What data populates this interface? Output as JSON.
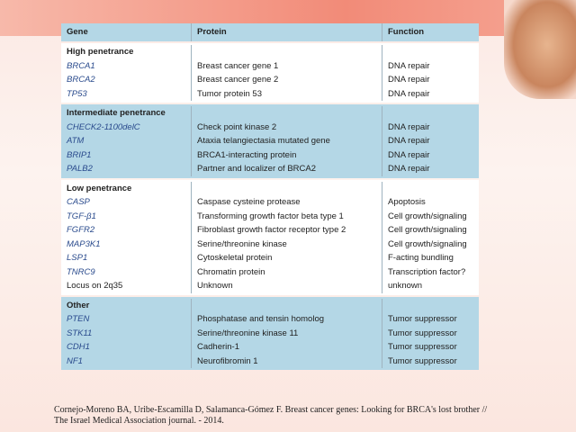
{
  "table": {
    "header": [
      "Gene",
      "Protein",
      "Function"
    ],
    "groups": [
      {
        "name": "High penetrance",
        "rows": [
          [
            "BRCA1",
            "Breast cancer gene 1",
            "DNA repair"
          ],
          [
            "BRCA2",
            "Breast cancer gene 2",
            "DNA repair"
          ],
          [
            "TP53",
            "Tumor protein 53",
            "DNA repair"
          ]
        ]
      },
      {
        "name": "Intermediate penetrance",
        "rows": [
          [
            "CHECK2-1100delC",
            "Check point kinase 2",
            "DNA repair"
          ],
          [
            "ATM",
            "Ataxia telangiectasia mutated gene",
            "DNA repair"
          ],
          [
            "BRIP1",
            "BRCA1-interacting protein",
            "DNA repair"
          ],
          [
            "PALB2",
            "Partner and localizer of BRCA2",
            "DNA repair"
          ]
        ]
      },
      {
        "name": "Low penetrance",
        "rows": [
          [
            "CASP",
            "Caspase cysteine protease",
            "Apoptosis"
          ],
          [
            "TGF-β1",
            "Transforming growth factor beta type 1",
            "Cell growth/signaling"
          ],
          [
            "FGFR2",
            "Fibroblast growth factor receptor type 2",
            "Cell growth/signaling"
          ],
          [
            "MAP3K1",
            "Serine/threonine kinase",
            "Cell growth/signaling"
          ],
          [
            "LSP1",
            "Cytoskeletal protein",
            "F-acting bundling"
          ],
          [
            "TNRC9",
            "Chromatin protein",
            "Transcription factor?"
          ],
          [
            "Locus on 2q35",
            "Unknown",
            "unknown"
          ]
        ]
      },
      {
        "name": "Other",
        "rows": [
          [
            "PTEN",
            "Phosphatase and tensin homolog",
            "Tumor suppressor"
          ],
          [
            "STK11",
            "Serine/threonine kinase 11",
            "Tumor suppressor"
          ],
          [
            "CDH1",
            "Cadherin-1",
            "Tumor suppressor"
          ],
          [
            "NF1",
            "Neurofibromin 1",
            "Tumor suppressor"
          ]
        ]
      }
    ]
  },
  "citation": [
    "Cornejo-Moreno BA, Uribe-Escamilla D, Salamanca-Gómez F. Breast cancer genes: Looking for BRCA's lost brother //",
    "The Israel Medical Association journal. - 2014."
  ]
}
